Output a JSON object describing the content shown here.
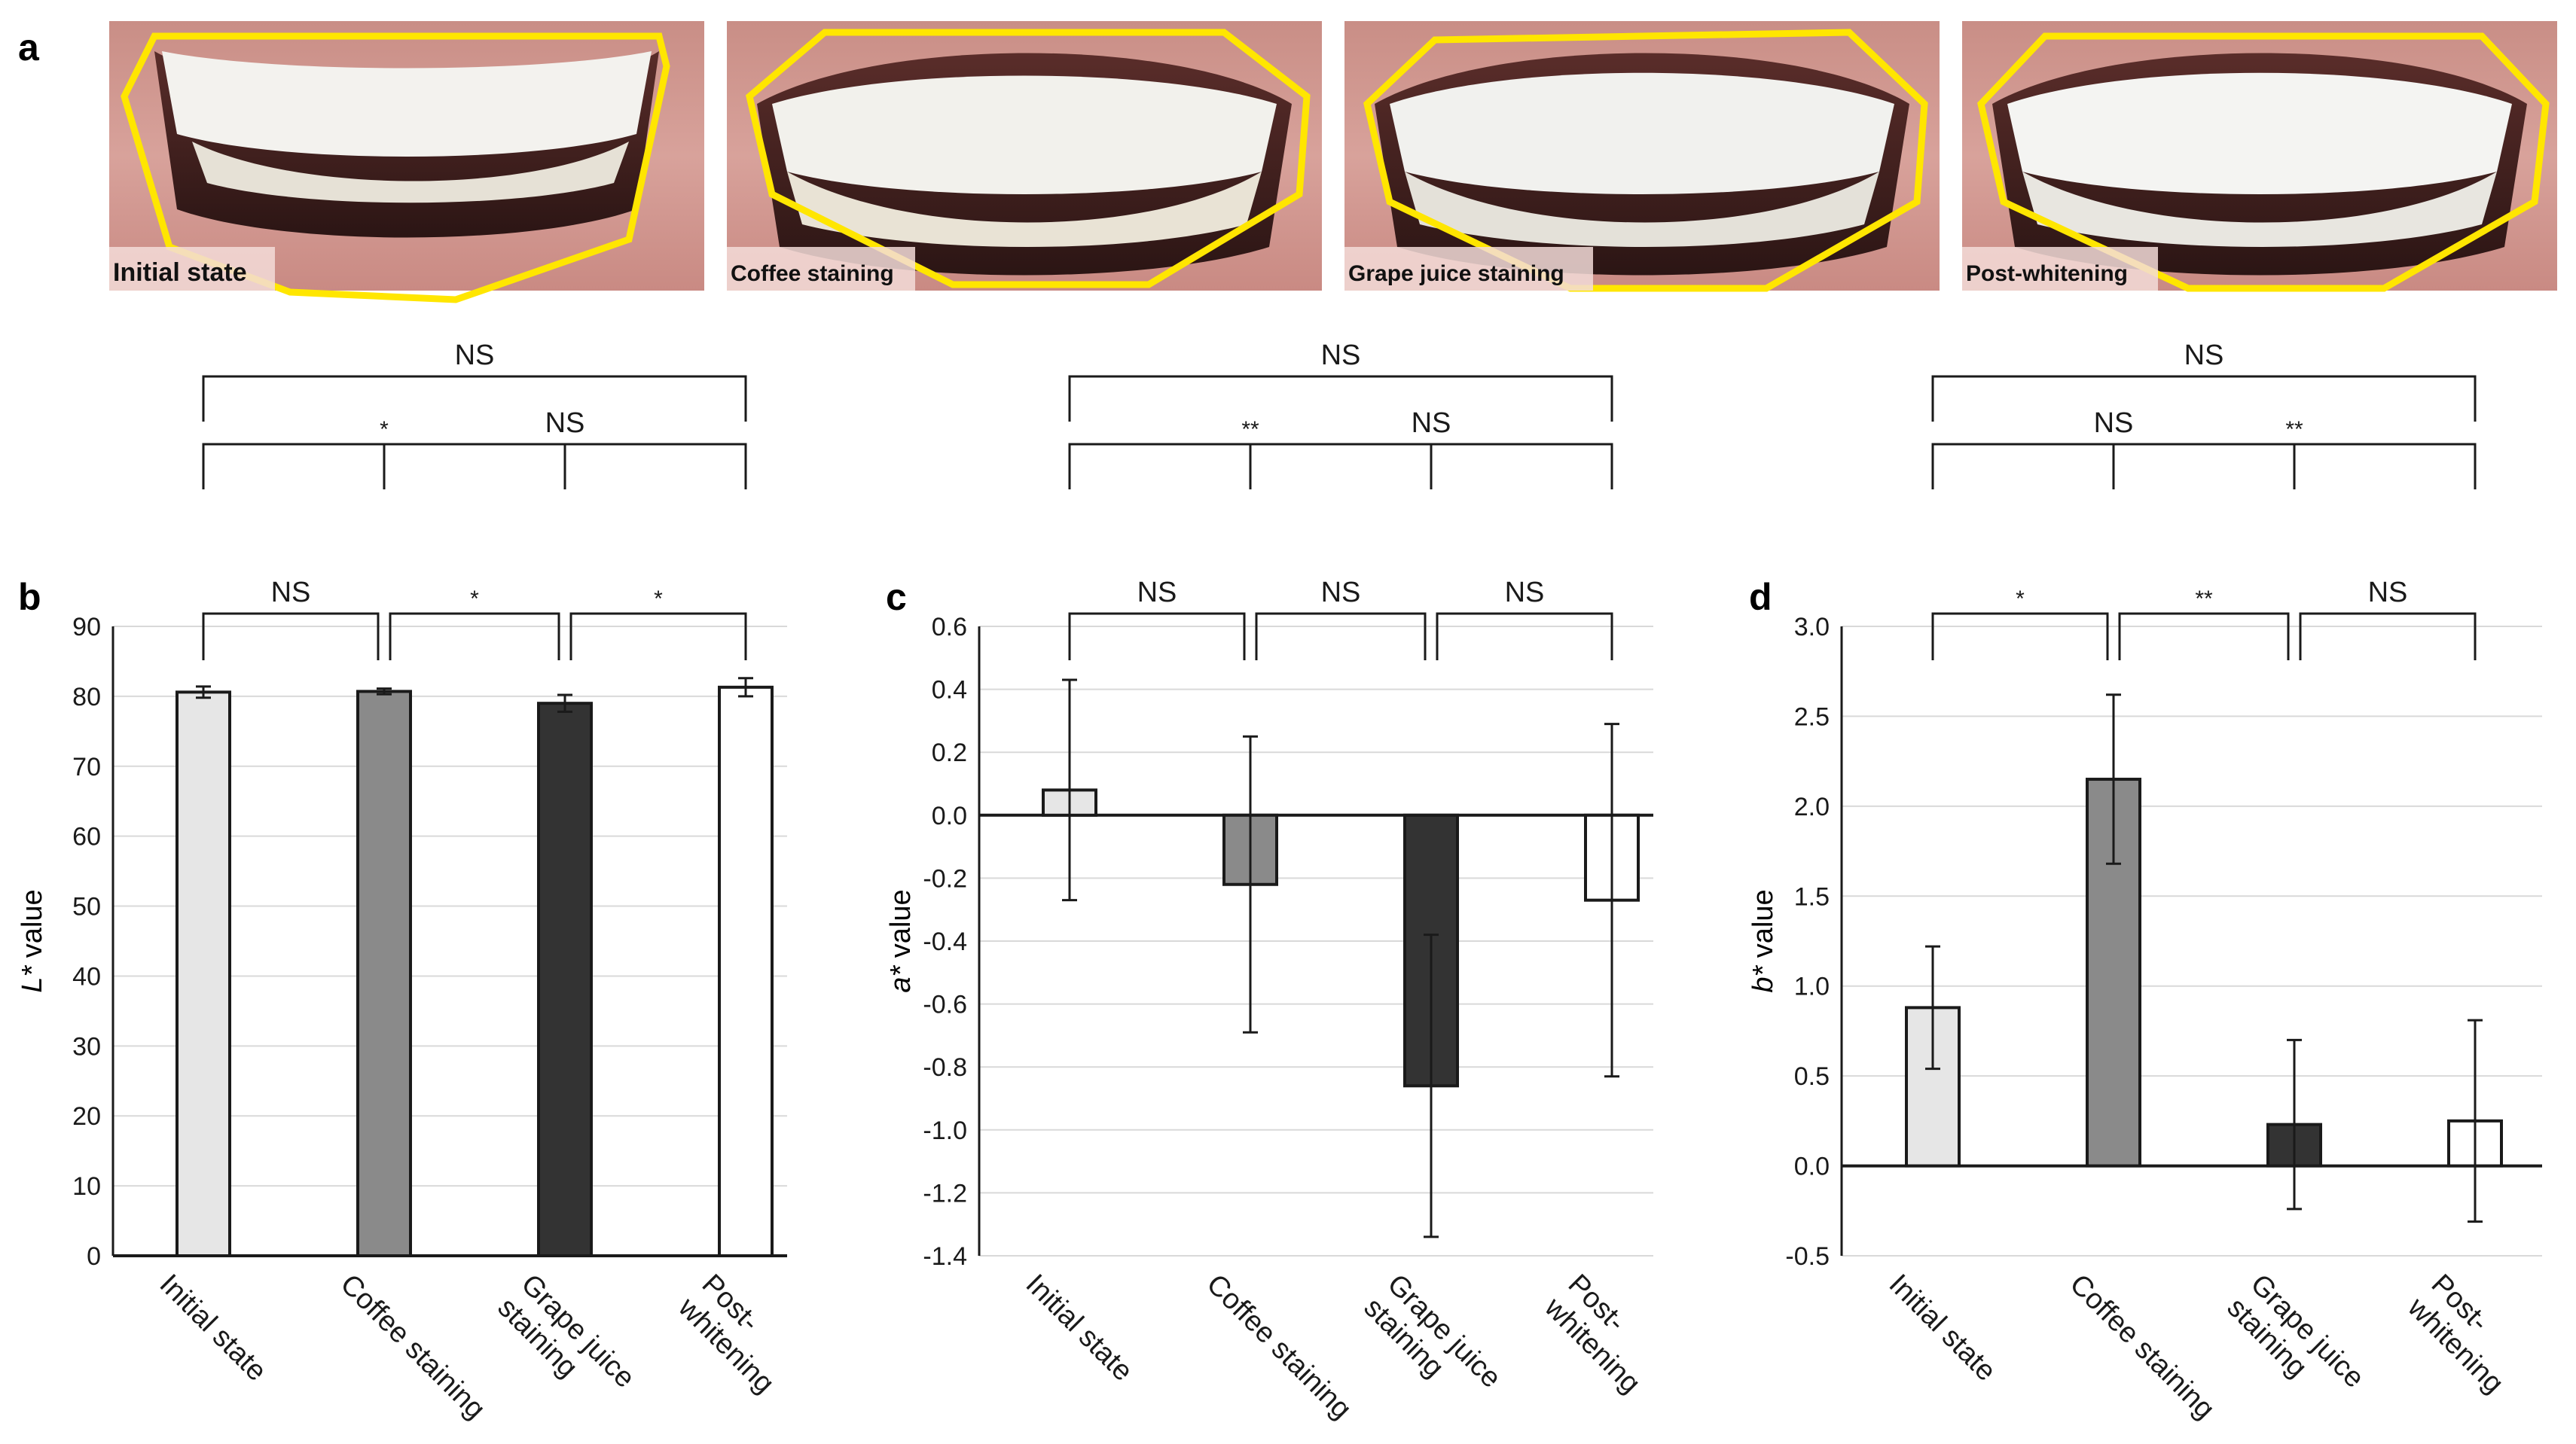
{
  "figure": {
    "panel_labels": [
      "a",
      "b",
      "c",
      "d"
    ],
    "photo_labels": [
      "Initial state",
      "Coffee staining",
      "Grape juice staining",
      "Post-whitening"
    ]
  },
  "colors": {
    "initial": "#e6e6e6",
    "coffee": "#8a8a8a",
    "grape": "#333333",
    "post": "#ffffff",
    "outline": "#1a1a1a",
    "grid": "#d9d9d9",
    "roi": "#ffe600",
    "gum": "#c98b85",
    "lip": "#d9918c",
    "tooth": "#f2f2ef"
  },
  "chart_data": [
    {
      "panel": "b",
      "type": "bar",
      "ylabel_prefix": "L*",
      "ylabel_suffix": " value",
      "categories": [
        "Initial state",
        "Coffee staining",
        "Grape juice\nstaining",
        "Post-\nwhitening"
      ],
      "values": [
        80.6,
        80.7,
        79.0,
        81.3
      ],
      "errors": [
        0.8,
        0.4,
        1.2,
        1.3
      ],
      "ylim": [
        0,
        90
      ],
      "yticks": [
        0,
        10,
        20,
        30,
        40,
        50,
        60,
        70,
        80,
        90
      ],
      "tick_decimals": 0,
      "grid": true,
      "significance": [
        {
          "from": 0,
          "to": 1,
          "label": "NS"
        },
        {
          "from": 1,
          "to": 2,
          "label": "*"
        },
        {
          "from": 2,
          "to": 3,
          "label": "*"
        },
        {
          "from": 0,
          "to": 2,
          "label": "*"
        },
        {
          "from": 1,
          "to": 3,
          "label": "NS"
        },
        {
          "from": 0,
          "to": 3,
          "label": "NS"
        }
      ]
    },
    {
      "panel": "c",
      "type": "bar",
      "ylabel_prefix": "a*",
      "ylabel_suffix": " value",
      "categories": [
        "Initial state",
        "Coffee staining",
        "Grape juice\nstaining",
        "Post-\nwhitening"
      ],
      "values": [
        0.08,
        -0.22,
        -0.86,
        -0.27
      ],
      "errors": [
        0.35,
        0.47,
        0.48,
        0.56
      ],
      "ylim": [
        -1.4,
        0.6
      ],
      "yticks": [
        -1.4,
        -1.2,
        -1.0,
        -0.8,
        -0.6,
        -0.4,
        -0.2,
        0.0,
        0.2,
        0.4,
        0.6
      ],
      "tick_decimals": 1,
      "grid": true,
      "significance": [
        {
          "from": 0,
          "to": 1,
          "label": "NS"
        },
        {
          "from": 1,
          "to": 2,
          "label": "NS"
        },
        {
          "from": 2,
          "to": 3,
          "label": "NS"
        },
        {
          "from": 0,
          "to": 2,
          "label": "**"
        },
        {
          "from": 1,
          "to": 3,
          "label": "NS"
        },
        {
          "from": 0,
          "to": 3,
          "label": "NS"
        }
      ]
    },
    {
      "panel": "d",
      "type": "bar",
      "ylabel_prefix": "b*",
      "ylabel_suffix": " value",
      "categories": [
        "Initial state",
        "Coffee staining",
        "Grape juice\nstaining",
        "Post-\nwhitening"
      ],
      "values": [
        0.88,
        2.15,
        0.23,
        0.25
      ],
      "errors": [
        0.34,
        0.47,
        0.47,
        0.56
      ],
      "ylim": [
        -0.5,
        3.0
      ],
      "yticks": [
        -0.5,
        0.0,
        0.5,
        1.0,
        1.5,
        2.0,
        2.5,
        3.0
      ],
      "tick_decimals": 1,
      "grid": true,
      "significance": [
        {
          "from": 0,
          "to": 1,
          "label": "*"
        },
        {
          "from": 1,
          "to": 2,
          "label": "**"
        },
        {
          "from": 2,
          "to": 3,
          "label": "NS"
        },
        {
          "from": 0,
          "to": 2,
          "label": "NS"
        },
        {
          "from": 1,
          "to": 3,
          "label": "**"
        },
        {
          "from": 0,
          "to": 3,
          "label": "NS"
        }
      ]
    }
  ]
}
